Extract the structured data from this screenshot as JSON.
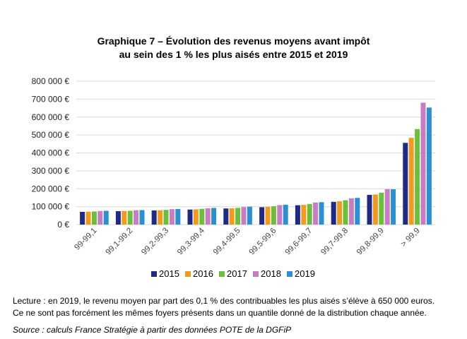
{
  "chart_data": {
    "type": "bar",
    "title_line1": "Graphique 7 – Évolution des revenus moyens avant impôt",
    "title_line2": "au sein des 1 % les plus aisés entre 2015 et 2019",
    "xlabel": "",
    "ylabel": "",
    "ylim": [
      0,
      800000
    ],
    "y_tick_labels": [
      "0 €",
      "100 000 €",
      "200 000 €",
      "300 000 €",
      "400 000 €",
      "500 000 €",
      "600 000 €",
      "700 000 €",
      "800 000 €"
    ],
    "grid": true,
    "legend_position": "bottom",
    "categories": [
      "99-99,1",
      "99,1-99,2",
      "99,2-99,3",
      "99,3-99,4",
      "99,4-99,5",
      "99,5-99,6",
      "99,6-99,7",
      "99,7-99,8",
      "99,8-99,9",
      "> 99,9"
    ],
    "series": [
      {
        "name": "2015",
        "color": "#1f2a86",
        "values": [
          71000,
          75000,
          79000,
          84000,
          90000,
          97000,
          108000,
          127000,
          166000,
          456000
        ]
      },
      {
        "name": "2016",
        "color": "#f39a1e",
        "values": [
          72000,
          76000,
          80000,
          85000,
          91000,
          99000,
          110000,
          130000,
          168000,
          484000
        ]
      },
      {
        "name": "2017",
        "color": "#6cbf3a",
        "values": [
          73000,
          77000,
          82000,
          88000,
          93000,
          102000,
          115000,
          136000,
          178000,
          533000
        ]
      },
      {
        "name": "2018",
        "color": "#c77cc4",
        "values": [
          76000,
          80000,
          86000,
          91000,
          98000,
          109000,
          123000,
          147000,
          198000,
          680000
        ]
      },
      {
        "name": "2019",
        "color": "#2b8fd4",
        "values": [
          77000,
          81000,
          87000,
          93000,
          100000,
          111000,
          125000,
          149000,
          197000,
          653000
        ]
      }
    ]
  },
  "notes": {
    "line1": "Lecture : en 2019, le revenu moyen par part des 0,1 % des contribuables les plus aisés s’élève à 650 000 euros.",
    "line2": "Ce ne sont pas forcément les mêmes foyers présents dans un quantile donné de la distribution chaque année.",
    "source": "Source : calculs France Stratégie à partir des données POTE de la DGFiP"
  }
}
